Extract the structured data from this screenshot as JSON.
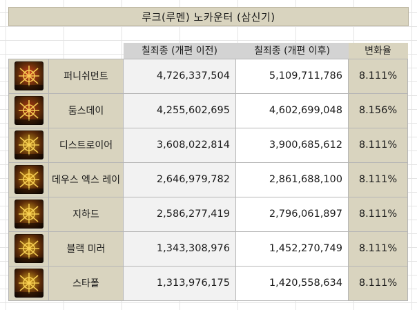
{
  "title": "루크(루멘) 노카운터 (삼신기)",
  "headers": {
    "before": "칠죄종 (개편 이전)",
    "after": "칠죄종 (개편 이후)",
    "change": "변화율"
  },
  "rows": [
    {
      "name": "퍼니쉬먼트",
      "before": "4,726,337,504",
      "after": "5,109,711,786",
      "change": "8.111%",
      "icon": "punishment-skill-icon",
      "color": "#d8451c"
    },
    {
      "name": "둠스데이",
      "before": "4,255,602,695",
      "after": "4,602,699,048",
      "change": "8.156%",
      "icon": "doomsday-skill-icon",
      "color": "#b63a12"
    },
    {
      "name": "디스트로이어",
      "before": "3,608,022,814",
      "after": "3,900,685,612",
      "change": "8.111%",
      "icon": "destroyer-skill-icon",
      "color": "#c79a1c"
    },
    {
      "name": "데우스 엑스 레이",
      "before": "2,646,979,782",
      "after": "2,861,688,100",
      "change": "8.111%",
      "icon": "deus-ex-ray-skill-icon",
      "color": "#d9a016"
    },
    {
      "name": "지하드",
      "before": "2,586,277,419",
      "after": "2,796,061,897",
      "change": "8.111%",
      "icon": "jihad-skill-icon",
      "color": "#d5a21a"
    },
    {
      "name": "블랙 미러",
      "before": "1,343,308,976",
      "after": "1,452,270,749",
      "change": "8.111%",
      "icon": "black-mirror-skill-icon",
      "color": "#cf9c1a"
    },
    {
      "name": "스타폴",
      "before": "1,313,976,175",
      "after": "1,420,558,634",
      "change": "8.111%",
      "icon": "starfall-skill-icon",
      "color": "#d8a51b"
    }
  ]
}
